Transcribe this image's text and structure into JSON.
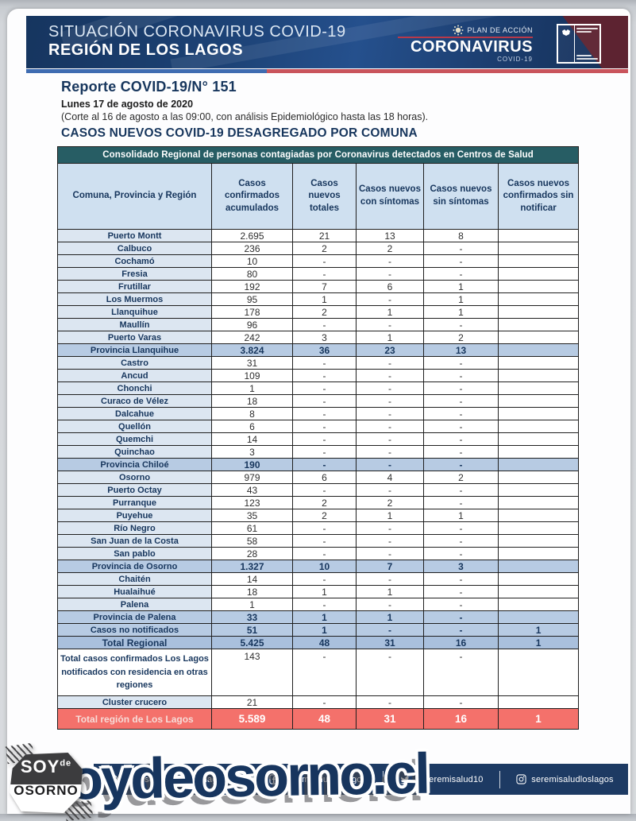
{
  "banner": {
    "title_line1": "SITUACIÓN CORONAVIRUS COVID-19",
    "title_line2": "REGIÓN DE LOS LAGOS",
    "plan_label": "PLAN DE ACCIÓN",
    "plan_brand": "CORONAVIRUS",
    "plan_sub": "COVID-19"
  },
  "report": {
    "title": "Reporte COVID-19/N° 151",
    "date": "Lunes 17 de agosto de 2020",
    "note": "(Corte al 16 de agosto a las 09:00, con análisis Epidemiológico hasta las 18 horas).",
    "section_title": "CASOS NUEVOS COVID-19 DESAGREGADO POR COMUNA"
  },
  "table": {
    "band_title": "Consolidado Regional de personas contagiadas por Coronavirus detectados en Centros de Salud",
    "columns": [
      "Comuna, Provincia y Región",
      "Casos confirmados acumulados",
      "Casos nuevos totales",
      "Casos nuevos con síntomas",
      "Casos nuevos sin síntomas",
      "Casos nuevos confirmados sin notificar"
    ],
    "rows": [
      {
        "name": "Puerto Montt",
        "values": [
          "2.695",
          "21",
          "13",
          "8",
          ""
        ],
        "type": "comuna"
      },
      {
        "name": "Calbuco",
        "values": [
          "236",
          "2",
          "2",
          "-",
          ""
        ],
        "type": "comuna"
      },
      {
        "name": "Cochamó",
        "values": [
          "10",
          "-",
          "-",
          "-",
          ""
        ],
        "type": "comuna"
      },
      {
        "name": "Fresia",
        "values": [
          "80",
          "-",
          "-",
          "-",
          ""
        ],
        "type": "comuna"
      },
      {
        "name": "Frutillar",
        "values": [
          "192",
          "7",
          "6",
          "1",
          ""
        ],
        "type": "comuna"
      },
      {
        "name": "Los Muermos",
        "values": [
          "95",
          "1",
          "-",
          "1",
          ""
        ],
        "type": "comuna"
      },
      {
        "name": "Llanquihue",
        "values": [
          "178",
          "2",
          "1",
          "1",
          ""
        ],
        "type": "comuna"
      },
      {
        "name": "Maullín",
        "values": [
          "96",
          "-",
          "-",
          "-",
          ""
        ],
        "type": "comuna"
      },
      {
        "name": "Puerto Varas",
        "values": [
          "242",
          "3",
          "1",
          "2",
          ""
        ],
        "type": "comuna"
      },
      {
        "name": "Provincia Llanquihue",
        "values": [
          "3.824",
          "36",
          "23",
          "13",
          ""
        ],
        "type": "provincia"
      },
      {
        "name": "Castro",
        "values": [
          "31",
          "-",
          "-",
          "-",
          ""
        ],
        "type": "comuna"
      },
      {
        "name": "Ancud",
        "values": [
          "109",
          "-",
          "-",
          "-",
          ""
        ],
        "type": "comuna"
      },
      {
        "name": "Chonchi",
        "values": [
          "1",
          "-",
          "-",
          "-",
          ""
        ],
        "type": "comuna"
      },
      {
        "name": "Curaco de Vélez",
        "values": [
          "18",
          "-",
          "-",
          "-",
          ""
        ],
        "type": "comuna"
      },
      {
        "name": "Dalcahue",
        "values": [
          "8",
          "-",
          "-",
          "-",
          ""
        ],
        "type": "comuna"
      },
      {
        "name": "Quellón",
        "values": [
          "6",
          "-",
          "-",
          "-",
          ""
        ],
        "type": "comuna"
      },
      {
        "name": "Quemchi",
        "values": [
          "14",
          "-",
          "-",
          "-",
          ""
        ],
        "type": "comuna"
      },
      {
        "name": "Quinchao",
        "values": [
          "3",
          "-",
          "-",
          "-",
          ""
        ],
        "type": "comuna"
      },
      {
        "name": "Provincia Chiloé",
        "values": [
          "190",
          "-",
          "-",
          "-",
          ""
        ],
        "type": "provincia"
      },
      {
        "name": "Osorno",
        "values": [
          "979",
          "6",
          "4",
          "2",
          ""
        ],
        "type": "comuna"
      },
      {
        "name": "Puerto Octay",
        "values": [
          "43",
          "-",
          "-",
          "-",
          ""
        ],
        "type": "comuna"
      },
      {
        "name": "Purranque",
        "values": [
          "123",
          "2",
          "2",
          "-",
          ""
        ],
        "type": "comuna"
      },
      {
        "name": "Puyehue",
        "values": [
          "35",
          "2",
          "1",
          "1",
          ""
        ],
        "type": "comuna"
      },
      {
        "name": "Río Negro",
        "values": [
          "61",
          "-",
          "-",
          "-",
          ""
        ],
        "type": "comuna"
      },
      {
        "name": "San Juan de la Costa",
        "values": [
          "58",
          "-",
          "-",
          "-",
          ""
        ],
        "type": "comuna"
      },
      {
        "name": "San pablo",
        "values": [
          "28",
          "-",
          "-",
          "-",
          ""
        ],
        "type": "comuna"
      },
      {
        "name": "Provincia de Osorno",
        "values": [
          "1.327",
          "10",
          "7",
          "3",
          ""
        ],
        "type": "provincia"
      },
      {
        "name": "Chaitén",
        "values": [
          "14",
          "-",
          "-",
          "-",
          ""
        ],
        "type": "comuna"
      },
      {
        "name": "Hualaihué",
        "values": [
          "18",
          "1",
          "1",
          "-",
          ""
        ],
        "type": "comuna"
      },
      {
        "name": "Palena",
        "values": [
          "1",
          "-",
          "-",
          "-",
          ""
        ],
        "type": "comuna"
      },
      {
        "name": "Provincia de Palena",
        "values": [
          "33",
          "1",
          "1",
          "-",
          ""
        ],
        "type": "provincia"
      },
      {
        "name": "Casos no notificados",
        "values": [
          "51",
          "1",
          "-",
          "-",
          "1"
        ],
        "type": "provincia"
      },
      {
        "name": "Total Regional",
        "values": [
          "5.425",
          "48",
          "31",
          "16",
          "1"
        ],
        "type": "total"
      },
      {
        "name": "Total casos confirmados Los Lagos  notificados con residencia en otras regiones",
        "values": [
          "143",
          "-",
          "-",
          "-",
          ""
        ],
        "type": "tall"
      },
      {
        "name": "Cluster crucero",
        "values": [
          "21",
          "-",
          "-",
          "-",
          ""
        ],
        "type": "comuna"
      },
      {
        "name": "Total región de Los Lagos",
        "values": [
          "5.589",
          "48",
          "31",
          "16",
          "1"
        ],
        "type": "grandtotal"
      }
    ]
  },
  "footer": {
    "watermark": "soydeosorno.cl",
    "badge": {
      "line1": "SOY",
      "line1b": "de",
      "line2": "OSORNO"
    },
    "social": [
      {
        "icon": "globe-icon",
        "label": "www.seremisaludloslagos.cl"
      },
      {
        "icon": "facebook-icon",
        "label": "seremisaludloslagos"
      },
      {
        "icon": "twitter-icon",
        "label": "@seremisalud10"
      },
      {
        "icon": "instagram-icon",
        "label": "seremisaludloslagos"
      }
    ]
  },
  "colors": {
    "teal": "#275d64",
    "headrow": "#cfe0f0",
    "namecell": "#dce6f1",
    "rowblue": "#b7cbe3",
    "totalblue": "#a9c0dd",
    "red": "#f4716b",
    "navy": "#1d3a63",
    "stripblue": "#3f6cb1",
    "stripred": "#c9545c"
  }
}
